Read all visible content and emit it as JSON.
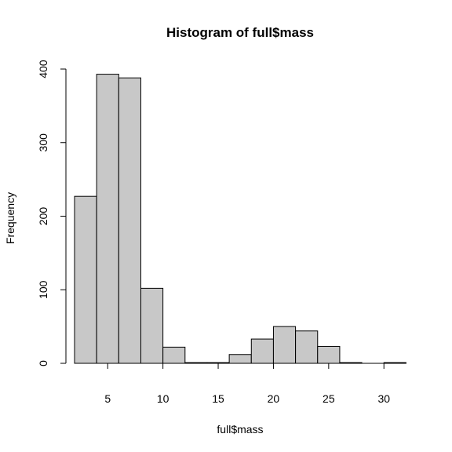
{
  "chart_data": {
    "type": "bar",
    "title": "Histogram of full$mass",
    "xlabel": "full$mass",
    "ylabel": "Frequency",
    "bins": [
      {
        "start": 2,
        "end": 4,
        "count": 227
      },
      {
        "start": 4,
        "end": 6,
        "count": 393
      },
      {
        "start": 6,
        "end": 8,
        "count": 388
      },
      {
        "start": 8,
        "end": 10,
        "count": 102
      },
      {
        "start": 10,
        "end": 12,
        "count": 22
      },
      {
        "start": 12,
        "end": 14,
        "count": 1
      },
      {
        "start": 14,
        "end": 16,
        "count": 1
      },
      {
        "start": 16,
        "end": 18,
        "count": 12
      },
      {
        "start": 18,
        "end": 20,
        "count": 33
      },
      {
        "start": 20,
        "end": 22,
        "count": 50
      },
      {
        "start": 22,
        "end": 24,
        "count": 44
      },
      {
        "start": 24,
        "end": 26,
        "count": 23
      },
      {
        "start": 26,
        "end": 28,
        "count": 1
      },
      {
        "start": 28,
        "end": 30,
        "count": 0
      },
      {
        "start": 30,
        "end": 32,
        "count": 1
      }
    ],
    "xticks": [
      "5",
      "10",
      "15",
      "20",
      "25",
      "30"
    ],
    "yticks": [
      "0",
      "100",
      "200",
      "300",
      "400"
    ],
    "xlim": [
      2,
      32
    ],
    "ylim": [
      0,
      400
    ],
    "bar_color": "#c8c8c8",
    "grid": false,
    "legend": "none"
  }
}
